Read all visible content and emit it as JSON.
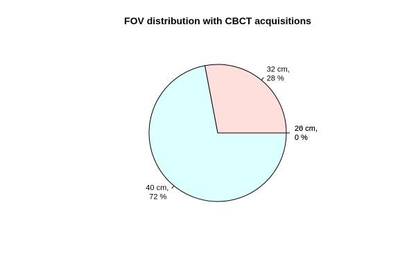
{
  "chart_data": {
    "type": "pie",
    "title": "FOV distribution with CBCT acquisitions",
    "slices": [
      {
        "label_line1": "20 cm,",
        "label_line2": "0 %",
        "value": 0,
        "color": "#ffffff"
      },
      {
        "label_line1": "26 cm,",
        "label_line2": "0 %",
        "value": 0,
        "color": "#ffffff"
      },
      {
        "label_line1": "32 cm,",
        "label_line2": "28 %",
        "value": 28,
        "color": "#ffdfdb"
      },
      {
        "label_line1": "40 cm,",
        "label_line2": "72 %",
        "value": 72,
        "color": "#dcffff"
      }
    ],
    "start": "right",
    "direction": "counterclockwise",
    "legend": "none"
  }
}
